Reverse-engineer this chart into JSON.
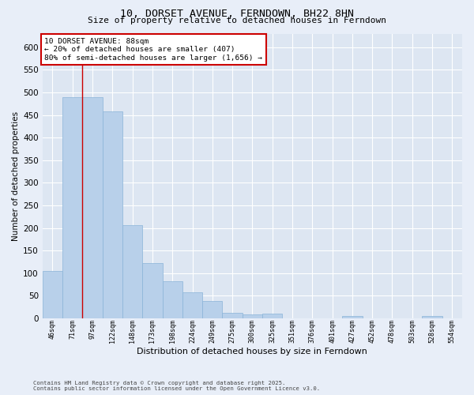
{
  "title": "10, DORSET AVENUE, FERNDOWN, BH22 8HN",
  "subtitle": "Size of property relative to detached houses in Ferndown",
  "xlabel": "Distribution of detached houses by size in Ferndown",
  "ylabel": "Number of detached properties",
  "categories": [
    "46sqm",
    "71sqm",
    "97sqm",
    "122sqm",
    "148sqm",
    "173sqm",
    "198sqm",
    "224sqm",
    "249sqm",
    "275sqm",
    "300sqm",
    "325sqm",
    "351sqm",
    "376sqm",
    "401sqm",
    "427sqm",
    "452sqm",
    "478sqm",
    "503sqm",
    "528sqm",
    "554sqm"
  ],
  "values": [
    105,
    490,
    490,
    458,
    207,
    122,
    82,
    58,
    39,
    13,
    8,
    10,
    0,
    0,
    0,
    5,
    0,
    0,
    0,
    5,
    0
  ],
  "bar_color": "#b8d0ea",
  "bar_edge_color": "#8ab4d8",
  "background_color": "#dde6f2",
  "grid_color": "#ffffff",
  "vline_x": 1.5,
  "vline_color": "#cc0000",
  "annotation_title": "10 DORSET AVENUE: 88sqm",
  "annotation_line2": "← 20% of detached houses are smaller (407)",
  "annotation_line3": "80% of semi-detached houses are larger (1,656) →",
  "annotation_box_color": "#cc0000",
  "fig_background": "#e8eef8",
  "footnote1": "Contains HM Land Registry data © Crown copyright and database right 2025.",
  "footnote2": "Contains public sector information licensed under the Open Government Licence v3.0.",
  "ylim": [
    0,
    630
  ],
  "yticks": [
    0,
    50,
    100,
    150,
    200,
    250,
    300,
    350,
    400,
    450,
    500,
    550,
    600
  ]
}
